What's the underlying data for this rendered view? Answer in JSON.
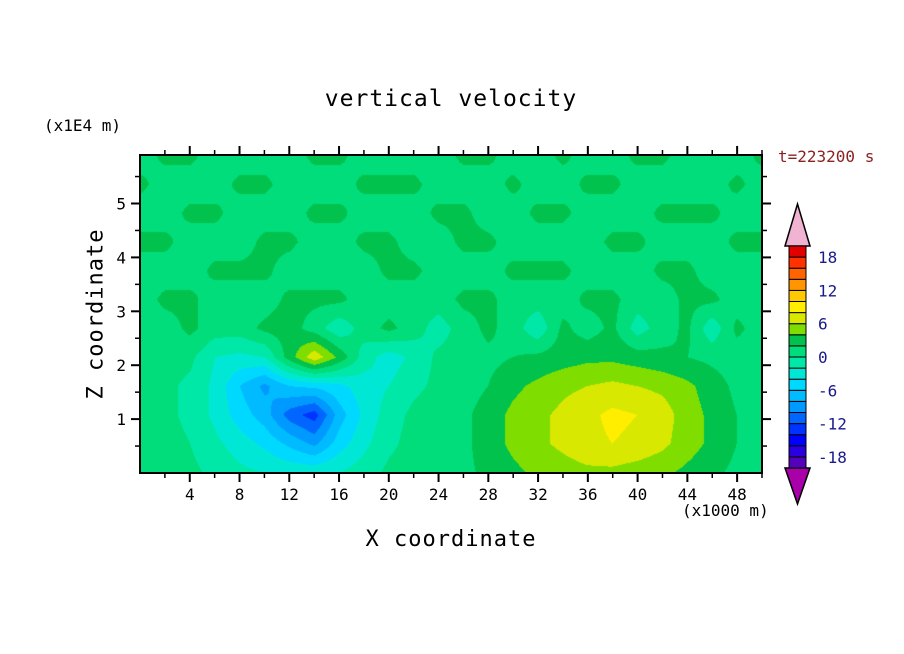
{
  "figure": {
    "title": "vertical velocity",
    "time_label": "t=223200 s",
    "y_unit_label": "(x1E4 m)",
    "x_unit_label": "(x1000 m)",
    "x_axis_title": "X coordinate",
    "y_axis_title": "Z coordinate"
  },
  "chart_data": {
    "type": "heatmap",
    "subtype": "filled-contour",
    "title": "vertical velocity",
    "time_annotation": "t=223200 s",
    "xlabel": "X coordinate",
    "x_units": "(x1000 m)",
    "ylabel": "Z coordinate",
    "y_units": "(x1E4 m)",
    "x_range": [
      0,
      50
    ],
    "z_range": [
      0,
      5.9
    ],
    "x_ticks_major": [
      4,
      8,
      12,
      16,
      20,
      24,
      28,
      32,
      36,
      40,
      44,
      48
    ],
    "x_ticks_minor": [
      2,
      6,
      10,
      14,
      18,
      22,
      26,
      30,
      34,
      38,
      42,
      46,
      50
    ],
    "z_ticks_major": [
      1,
      2,
      3,
      4,
      5
    ],
    "z_ticks_minor": [
      0.5,
      1.5,
      2.5,
      3.5,
      4.5,
      5.5
    ],
    "levels_start": -20,
    "levels_step": 2,
    "colorbar": {
      "colors_bottom_to_top": [
        "#5500bb",
        "#2a00e0",
        "#0000ff",
        "#0033ff",
        "#0066ff",
        "#0099ff",
        "#00bbff",
        "#00d9ff",
        "#00e8d5",
        "#00e8a8",
        "#00dd7a",
        "#00c24d",
        "#7fdd00",
        "#d8e800",
        "#ffee00",
        "#ffc800",
        "#ff9600",
        "#ff6400",
        "#ff3200",
        "#e00000"
      ],
      "arrow_top_color": "#f0b4d2",
      "arrow_bottom_color": "#aa00aa",
      "tick_values": [
        18,
        12,
        6,
        0,
        -6,
        -12,
        -18
      ],
      "tick_labels": [
        "18",
        "12",
        "6",
        "0",
        "-6",
        "-12",
        "-18"
      ]
    },
    "grid": {
      "orientation": "rows bottom-to-top, columns left-to-right, uniform over x_range and z_range",
      "nx": 26,
      "nz": 12,
      "values": [
        [
          1,
          1,
          0.5,
          -0.5,
          -1.5,
          -2,
          -2.5,
          -2.5,
          -2,
          -1,
          0.5,
          1,
          1,
          1.5,
          2.5,
          3.5,
          4.5,
          5,
          5.5,
          5.5,
          5,
          4.5,
          3.5,
          2.5,
          1.5,
          1
        ],
        [
          1,
          0.8,
          0,
          -1.5,
          -3,
          -4.5,
          -6.5,
          -8.5,
          -5,
          -2.5,
          -0.5,
          0.8,
          1,
          1.5,
          3,
          4.5,
          5.5,
          6.5,
          7.5,
          8,
          7.5,
          6.5,
          5,
          3.5,
          2,
          1
        ],
        [
          1,
          0.5,
          -0.5,
          -2.5,
          -5,
          -7,
          -11,
          -13,
          -7,
          -3.5,
          -1,
          0.5,
          1,
          1.5,
          3,
          4.5,
          5.5,
          6.5,
          7.5,
          8.5,
          8,
          7,
          5,
          3.5,
          2,
          1
        ],
        [
          1,
          0.5,
          -0.5,
          -2.5,
          -6,
          -8.5,
          -6,
          -5.5,
          -4.5,
          -3,
          -2,
          -0.5,
          0.5,
          1,
          2,
          3.5,
          4.5,
          5.5,
          6,
          6.5,
          6,
          5.5,
          4.5,
          3,
          1.5,
          1
        ],
        [
          1,
          1,
          0.5,
          -2,
          -2.5,
          -2,
          3,
          7.5,
          3.5,
          -1,
          -3,
          -1.5,
          0.5,
          1,
          1.5,
          2,
          2.5,
          3,
          3.5,
          3.5,
          3,
          2.5,
          2,
          1.5,
          1,
          1
        ],
        [
          1,
          1,
          2.5,
          1,
          1,
          2.5,
          3,
          1,
          -1.5,
          1,
          2.5,
          1,
          -1,
          1,
          2.5,
          1,
          -1.5,
          2.5,
          1,
          2.5,
          -1,
          1,
          2.5,
          -1.5,
          2.5,
          1
        ],
        [
          1,
          2.5,
          2.5,
          1,
          1,
          1,
          2.5,
          2.5,
          2.5,
          1,
          1,
          1,
          1,
          2.5,
          2.5,
          1,
          1,
          1,
          2.5,
          2.5,
          1,
          1,
          2.5,
          2.5,
          1,
          1
        ],
        [
          1,
          1,
          1,
          2.5,
          2.5,
          2.5,
          1,
          1,
          1,
          1,
          2.5,
          2.5,
          1,
          1,
          1,
          2.5,
          2.5,
          2.5,
          1,
          1,
          1,
          2.5,
          2.5,
          1,
          1,
          1
        ],
        [
          2.5,
          2.5,
          1,
          1,
          1,
          2.5,
          2.5,
          1,
          1,
          2.5,
          2.5,
          1,
          1,
          2.5,
          2.5,
          1,
          1,
          1,
          1,
          2.5,
          2.5,
          1,
          1,
          1,
          2.5,
          2.5
        ],
        [
          1,
          1,
          2.5,
          2.5,
          1,
          1,
          1,
          2.5,
          2.5,
          1,
          1,
          1,
          2.5,
          2.5,
          1,
          1,
          2.5,
          2.5,
          1,
          1,
          1,
          2.5,
          2.5,
          2.5,
          1,
          1
        ],
        [
          2.5,
          1,
          1,
          1,
          2.5,
          2.5,
          1,
          1,
          1,
          2.5,
          2.5,
          2.5,
          1,
          1,
          1,
          2.5,
          1,
          1,
          2.5,
          2.5,
          1,
          1,
          1,
          1,
          2.5,
          1
        ],
        [
          1,
          2.5,
          2.5,
          1,
          1,
          1,
          1,
          2.5,
          2.5,
          1,
          1,
          1,
          1,
          2.5,
          2.5,
          1,
          1,
          2.5,
          1,
          1,
          2.5,
          2.5,
          1,
          1,
          1,
          2.5
        ]
      ]
    }
  }
}
